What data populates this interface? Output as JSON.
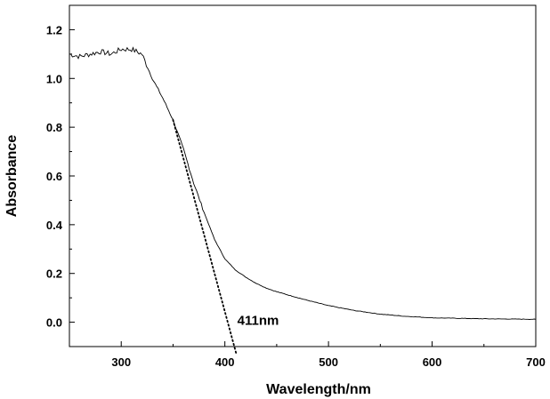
{
  "chart_data": {
    "type": "line",
    "title": "",
    "xlabel": "Wavelength/nm",
    "ylabel": "Absorbance",
    "xlim": [
      250,
      700
    ],
    "ylim": [
      -0.1,
      1.3
    ],
    "x_ticks": [
      300,
      400,
      500,
      600,
      700
    ],
    "y_ticks": [
      0.0,
      0.2,
      0.4,
      0.6,
      0.8,
      1.0,
      1.2
    ],
    "x_tick_labels": [
      "300",
      "400",
      "500",
      "600",
      "700"
    ],
    "y_tick_labels": [
      "0.0",
      "0.2",
      "0.4",
      "0.6",
      "0.8",
      "1.0",
      "1.2"
    ],
    "grid": false,
    "legend": "none",
    "series": [
      {
        "style": "solid",
        "color": "#000000",
        "x": [
          250,
          260,
          270,
          280,
          290,
          300,
          310,
          320,
          330,
          340,
          350,
          360,
          370,
          380,
          390,
          400,
          410,
          420,
          430,
          440,
          450,
          475,
          500,
          525,
          550,
          575,
          600,
          650,
          700
        ],
        "y": [
          1.1,
          1.09,
          1.1,
          1.11,
          1.1,
          1.12,
          1.12,
          1.1,
          1.0,
          0.92,
          0.83,
          0.71,
          0.57,
          0.45,
          0.34,
          0.26,
          0.215,
          0.185,
          0.16,
          0.14,
          0.125,
          0.095,
          0.068,
          0.048,
          0.033,
          0.024,
          0.018,
          0.014,
          0.012
        ]
      },
      {
        "style": "dotted",
        "color": "#000000",
        "x": [
          350,
          411
        ],
        "y": [
          0.83,
          -0.13
        ]
      }
    ],
    "annotations": [
      {
        "text": "411nm",
        "x": 412,
        "y": -0.01
      }
    ]
  }
}
